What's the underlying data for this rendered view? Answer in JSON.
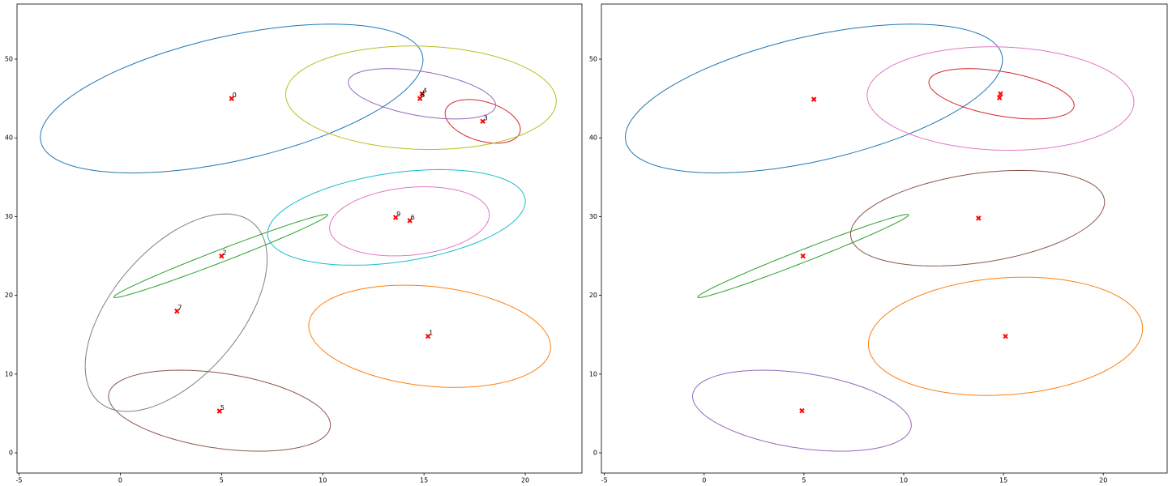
{
  "chart_data": [
    {
      "type": "scatter",
      "marker_color": "#ff0000",
      "x": [
        5.5,
        15.2,
        5.0,
        17.9,
        14.9,
        4.9,
        14.3,
        2.8,
        14.8,
        13.6
      ],
      "y": [
        45.0,
        14.8,
        25.0,
        42.1,
        45.6,
        5.3,
        29.5,
        18.0,
        45.0,
        29.9
      ],
      "point_labels": [
        "0",
        "1",
        "2",
        "3",
        "4",
        "5",
        "6",
        "7",
        "8",
        "9"
      ],
      "ellipses": [
        {
          "cx": 5.5,
          "cy": 45.0,
          "width": 23.3,
          "height": 13.1,
          "angle": 45,
          "color": "#1f77b4"
        },
        {
          "cx": 15.28,
          "cy": 14.8,
          "width": 13.8,
          "height": 11.0,
          "angle": -56,
          "color": "#ff7f0e"
        },
        {
          "cx": 4.96,
          "cy": 25.0,
          "width": 14.9,
          "height": 1.2,
          "angle": 45,
          "color": "#2ca02c"
        },
        {
          "cx": 17.9,
          "cy": 42.1,
          "width": 5.8,
          "height": 3.3,
          "angle": -69,
          "color": "#d62728"
        },
        {
          "cx": 14.9,
          "cy": 45.6,
          "width": 8.3,
          "height": 5.0,
          "angle": -37,
          "color": "#9467bd"
        },
        {
          "cx": 4.9,
          "cy": 5.35,
          "width": 12.4,
          "height": 8.5,
          "angle": -40,
          "color": "#8c564b"
        },
        {
          "cx": 14.28,
          "cy": 29.4,
          "width": 9.2,
          "height": 7.4,
          "angle": 60,
          "color": "#e377c2"
        },
        {
          "cx": 2.76,
          "cy": 17.8,
          "width": 25.6,
          "height": 7.4,
          "angle": 78,
          "color": "#7f7f7f"
        },
        {
          "cx": 14.85,
          "cy": 45.1,
          "width": 13.7,
          "height": 12.8,
          "angle": -38,
          "color": "#bcbd22"
        },
        {
          "cx": 13.64,
          "cy": 29.9,
          "width": 14.4,
          "height": 10.1,
          "angle": 41,
          "color": "#17becf"
        }
      ],
      "xlim": [
        -5.1,
        22.8
      ],
      "ylim": [
        -2.57,
        57.0
      ],
      "xticks": [
        -5,
        0,
        5,
        10,
        15,
        20
      ],
      "yticks": [
        0,
        10,
        20,
        30,
        40,
        50
      ]
    },
    {
      "type": "scatter",
      "marker_color": "#ff0000",
      "x": [
        5.5,
        14.85,
        14.8,
        13.75,
        4.95,
        15.1,
        4.9
      ],
      "y": [
        44.9,
        45.6,
        45.1,
        29.8,
        25.0,
        14.8,
        5.35
      ],
      "ellipses": [
        {
          "cx": 5.5,
          "cy": 45.0,
          "width": 23.3,
          "height": 13.1,
          "angle": 45,
          "color": "#1f77b4"
        },
        {
          "cx": 15.1,
          "cy": 14.8,
          "width": 15.5,
          "height": 13.2,
          "angle": 62,
          "color": "#ff7f0e"
        },
        {
          "cx": 4.96,
          "cy": 25.0,
          "width": 14.9,
          "height": 1.2,
          "angle": 45,
          "color": "#2ca02c"
        },
        {
          "cx": 14.9,
          "cy": 45.6,
          "width": 8.3,
          "height": 5.0,
          "angle": -37,
          "color": "#d62728"
        },
        {
          "cx": 4.9,
          "cy": 5.35,
          "width": 12.4,
          "height": 8.5,
          "angle": -40,
          "color": "#9467bd"
        },
        {
          "cx": 13.7,
          "cy": 29.8,
          "width": 14.4,
          "height": 10.1,
          "angle": 41,
          "color": "#8c564b"
        },
        {
          "cx": 14.85,
          "cy": 45.0,
          "width": 13.7,
          "height": 12.8,
          "angle": -38,
          "color": "#e377c2"
        }
      ],
      "xlim": [
        -5.15,
        23.2
      ],
      "ylim": [
        -2.57,
        57.0
      ],
      "xticks": [
        -5,
        0,
        5,
        10,
        15,
        20
      ],
      "yticks": [
        0,
        10,
        20,
        30,
        40,
        50
      ]
    }
  ]
}
